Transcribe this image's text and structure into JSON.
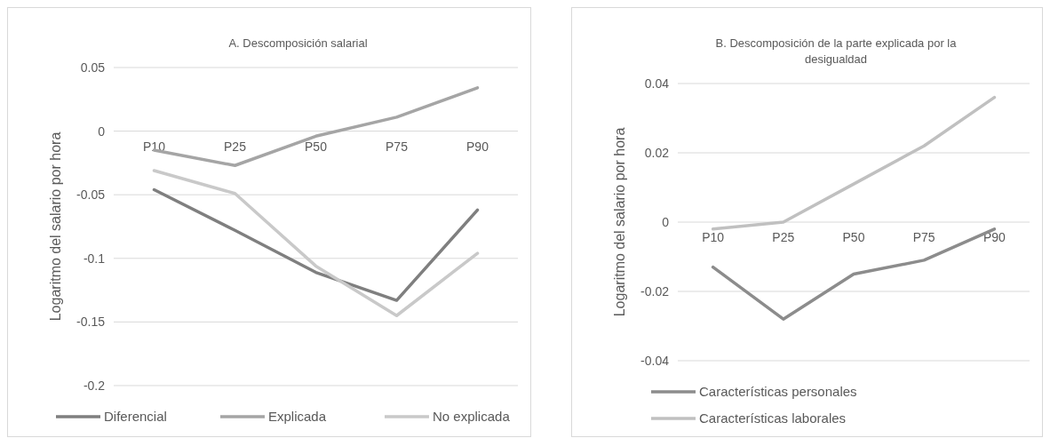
{
  "chart_data": [
    {
      "type": "line",
      "title": "A. Descomposición salarial",
      "ylabel": "Logaritmo del salario por hora",
      "categories": [
        "P10",
        "P25",
        "P50",
        "P75",
        "P90"
      ],
      "ylim": [
        -0.2,
        0.05
      ],
      "yticks": [
        -0.2,
        -0.15,
        -0.1,
        -0.05,
        0,
        0.05
      ],
      "grid": "y",
      "legend": "bottom",
      "series": [
        {
          "name": "Diferencial",
          "color": "#7f7f7f",
          "values": [
            -0.046,
            -0.078,
            -0.111,
            -0.133,
            -0.062
          ]
        },
        {
          "name": "Explicada",
          "color": "#a5a5a5",
          "values": [
            -0.015,
            -0.027,
            -0.004,
            0.011,
            0.034
          ]
        },
        {
          "name": "No explicada",
          "color": "#c9c9c9",
          "values": [
            -0.031,
            -0.049,
            -0.106,
            -0.145,
            -0.096
          ]
        }
      ]
    },
    {
      "type": "line",
      "title": "B. Descomposición de la parte explicada por la desigualdad",
      "ylabel": "Logaritmo del salario por hora",
      "categories": [
        "P10",
        "P25",
        "P50",
        "P75",
        "P90"
      ],
      "ylim": [
        -0.04,
        0.04
      ],
      "yticks": [
        -0.04,
        -0.02,
        0,
        0.02,
        0.04
      ],
      "grid": "y",
      "legend": "bottom",
      "series": [
        {
          "name": "Características personales",
          "color": "#8c8c8c",
          "values": [
            -0.013,
            -0.028,
            -0.015,
            -0.011,
            -0.002
          ]
        },
        {
          "name": "Características laborales",
          "color": "#c0c0c0",
          "values": [
            -0.002,
            0,
            0.011,
            0.022,
            0.036
          ]
        }
      ]
    }
  ]
}
